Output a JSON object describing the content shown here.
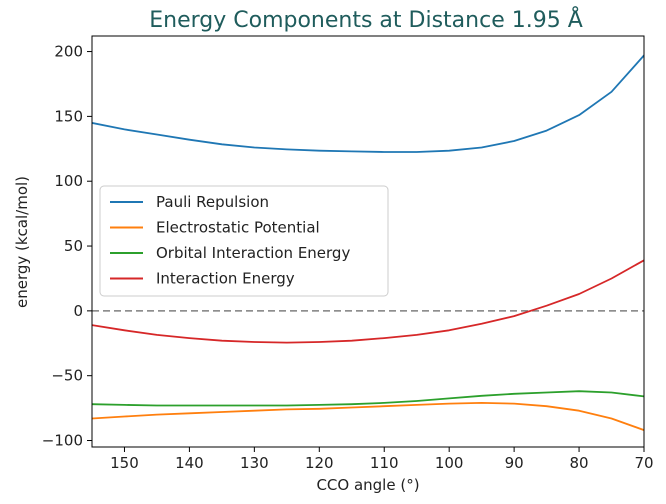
{
  "chart_data": {
    "type": "line",
    "title": "Energy Components at Distance 1.95 Å",
    "title_color": "#1f5c5c",
    "xlabel": "CCO angle (°)",
    "ylabel": "energy (kcal/mol)",
    "xlim": [
      155,
      70
    ],
    "ylim": [
      -105,
      212
    ],
    "xticks": [
      150,
      140,
      130,
      120,
      110,
      100,
      90,
      80,
      70
    ],
    "yticks": [
      -100,
      -50,
      0,
      50,
      100,
      150,
      200
    ],
    "reference_line": {
      "y": 0,
      "style": "dashed",
      "color": "#7f7f7f"
    },
    "legend_position": "center-left",
    "series": [
      {
        "name": "Pauli Repulsion",
        "color": "#1f77b4",
        "x": [
          155,
          150,
          145,
          140,
          135,
          130,
          125,
          120,
          115,
          110,
          105,
          100,
          95,
          90,
          85,
          80,
          75,
          70
        ],
        "y": [
          145,
          140,
          136,
          132,
          128.5,
          126,
          124.5,
          123.5,
          123,
          122.5,
          122.5,
          123.5,
          126,
          131,
          139,
          151,
          169,
          197
        ]
      },
      {
        "name": "Electrostatic Potential",
        "color": "#ff7f0e",
        "x": [
          155,
          150,
          145,
          140,
          135,
          130,
          125,
          120,
          115,
          110,
          105,
          100,
          95,
          90,
          85,
          80,
          75,
          70
        ],
        "y": [
          -83,
          -81.5,
          -80,
          -79,
          -78,
          -77,
          -76,
          -75.5,
          -74.5,
          -73.5,
          -72.5,
          -71.5,
          -71,
          -71.5,
          -73.5,
          -77,
          -83,
          -92
        ]
      },
      {
        "name": "Orbital Interaction Energy",
        "color": "#2ca02c",
        "x": [
          155,
          150,
          145,
          140,
          135,
          130,
          125,
          120,
          115,
          110,
          105,
          100,
          95,
          90,
          85,
          80,
          75,
          70
        ],
        "y": [
          -72,
          -72.5,
          -73,
          -73,
          -73,
          -73,
          -73,
          -72.5,
          -72,
          -71,
          -69.5,
          -67.5,
          -65.5,
          -64,
          -63,
          -62,
          -63,
          -66
        ]
      },
      {
        "name": "Interaction Energy",
        "color": "#d62728",
        "x": [
          155,
          150,
          145,
          140,
          135,
          130,
          125,
          120,
          115,
          110,
          105,
          100,
          95,
          90,
          85,
          80,
          75,
          70
        ],
        "y": [
          -11,
          -15,
          -18.5,
          -21,
          -23,
          -24,
          -24.5,
          -24,
          -23,
          -21,
          -18.5,
          -15,
          -10,
          -4,
          4,
          13,
          25,
          39
        ]
      }
    ]
  }
}
